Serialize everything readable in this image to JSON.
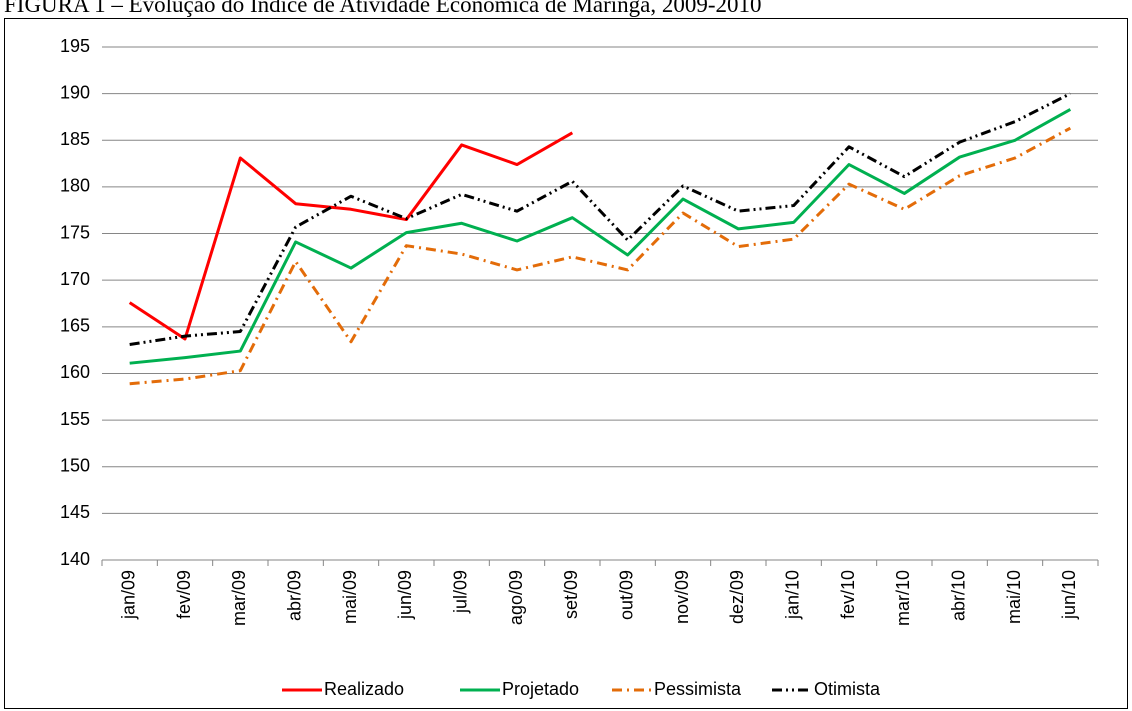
{
  "chart_data": {
    "type": "line",
    "title": "FIGURA 1 – Evolução do Índice de Atividade Econômica de Maringá, 2009-2010",
    "categories": [
      "jan/09",
      "fev/09",
      "mar/09",
      "abr/09",
      "mai/09",
      "jun/09",
      "jul/09",
      "ago/09",
      "set/09",
      "out/09",
      "nov/09",
      "dez/09",
      "jan/10",
      "fev/10",
      "mar/10",
      "abr/10",
      "mai/10",
      "jun/10"
    ],
    "ylim": [
      140,
      195
    ],
    "yticks": [
      140,
      145,
      150,
      155,
      160,
      165,
      170,
      175,
      180,
      185,
      190,
      195
    ],
    "grid": true,
    "legend": "bottom",
    "series": [
      {
        "name": "Realizado",
        "color": "#ff0000",
        "dash": "solid",
        "values": [
          167.6,
          163.7,
          183.1,
          178.2,
          177.6,
          176.5,
          184.5,
          182.4,
          185.8,
          null,
          null,
          null,
          null,
          null,
          null,
          null,
          null,
          null
        ]
      },
      {
        "name": "Projetado",
        "color": "#00b050",
        "dash": "solid",
        "values": [
          161.1,
          161.7,
          162.4,
          174.1,
          171.3,
          175.1,
          176.1,
          174.2,
          176.7,
          172.7,
          178.7,
          175.5,
          176.2,
          182.4,
          179.3,
          183.2,
          185.0,
          188.3
        ]
      },
      {
        "name": "Pessimista",
        "color": "#e36c09",
        "dash": "dashdot",
        "values": [
          158.9,
          159.4,
          160.3,
          172.0,
          163.4,
          173.7,
          172.8,
          171.1,
          172.5,
          171.1,
          177.2,
          173.6,
          174.4,
          180.3,
          177.6,
          181.2,
          183.1,
          186.3
        ]
      },
      {
        "name": "Otimista",
        "color": "#000000",
        "dash": "dashdotdot",
        "values": [
          163.1,
          164.0,
          164.5,
          175.7,
          179.0,
          176.6,
          179.2,
          177.4,
          180.6,
          174.3,
          180.1,
          177.4,
          178.0,
          184.3,
          181.1,
          184.8,
          187.0,
          190.0
        ]
      }
    ]
  }
}
